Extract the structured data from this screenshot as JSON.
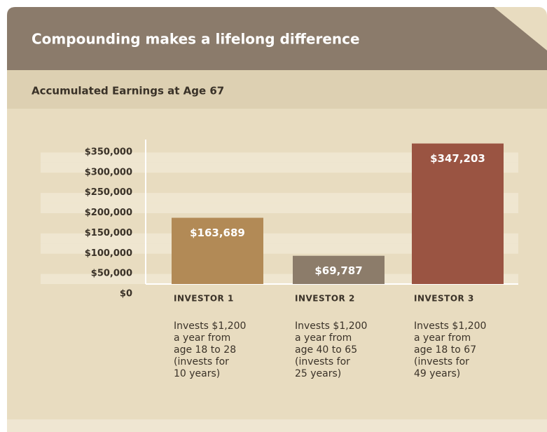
{
  "chart_data": {
    "type": "bar",
    "title": "Compounding makes a lifelong difference",
    "subtitle": "Accumulated Earnings at Age 67",
    "categories": [
      "INVESTOR 1",
      "INVESTOR 2",
      "INVESTOR 3"
    ],
    "values": [
      163689,
      69787,
      347203
    ],
    "value_labels": [
      "$163,689",
      "$69,787",
      "$347,203"
    ],
    "colors": [
      "#b28a56",
      "#8c7c6a",
      "#9a5442"
    ],
    "descriptions": [
      [
        "Invests $1,200",
        "a year from",
        "age 18 to 28",
        "(invests for",
        "10 years)"
      ],
      [
        "Invests $1,200",
        "a year from",
        "age 40 to 65",
        "(invests for",
        "25 years)"
      ],
      [
        "Invests $1,200",
        "a year from",
        "age 18 to 67",
        "(invests for",
        "49 years)"
      ]
    ],
    "ylim": [
      0,
      350000
    ],
    "yticks": [
      {
        "value": 0,
        "label": "$0"
      },
      {
        "value": 50000,
        "label": "$50,000"
      },
      {
        "value": 100000,
        "label": "$100,000"
      },
      {
        "value": 150000,
        "label": "$150,000"
      },
      {
        "value": 200000,
        "label": "$200,000"
      },
      {
        "value": 250000,
        "label": "$250,000"
      },
      {
        "value": 300000,
        "label": "$300,000"
      },
      {
        "value": 350000,
        "label": "$350,000"
      }
    ],
    "grid": true
  }
}
